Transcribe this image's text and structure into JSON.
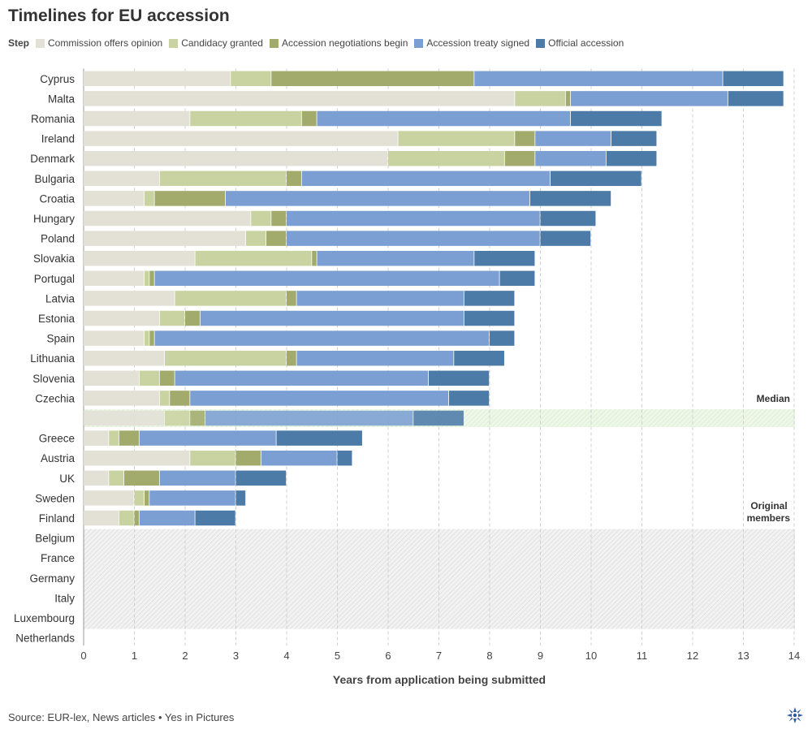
{
  "title": "Timelines for EU accession",
  "source": "Source: EUR-lex, News articles • Yes in Pictures",
  "legend": {
    "title": "Step",
    "items": [
      {
        "label": "Commission offers opinion",
        "color": "#e3e0d6"
      },
      {
        "label": "Candidacy granted",
        "color": "#c9d3a1"
      },
      {
        "label": "Accession negotiations begin",
        "color": "#a2ab6b"
      },
      {
        "label": "Accession treaty signed",
        "color": "#7b9fd2"
      },
      {
        "label": "Official accession",
        "color": "#4c7ba8"
      }
    ]
  },
  "chart_data": {
    "type": "bar",
    "orientation": "horizontal",
    "stacked": true,
    "title": "Timelines for EU accession",
    "xlabel": "Years from application being submitted",
    "ylabel": "",
    "xlim": [
      0,
      14
    ],
    "xticks": [
      0,
      1,
      2,
      3,
      4,
      5,
      6,
      7,
      8,
      9,
      10,
      11,
      12,
      13,
      14
    ],
    "grid": "vertical dashed",
    "categories": [
      "Cyprus",
      "Malta",
      "Romania",
      "Ireland",
      "Denmark",
      "Bulgaria",
      "Croatia",
      "Hungary",
      "Poland",
      "Slovakia",
      "Portugal",
      "Latvia",
      "Estonia",
      "Spain",
      "Lithuania",
      "Slovenia",
      "Czechia",
      "Median",
      "Greece",
      "Austria",
      "UK",
      "Sweden",
      "Finland",
      "Belgium",
      "France",
      "Germany",
      "Italy",
      "Luxembourg",
      "Netherlands"
    ],
    "step_names": [
      "Commission offers opinion",
      "Candidacy granted",
      "Accession negotiations begin",
      "Accession treaty signed",
      "Official accession"
    ],
    "series_note": "cumulative years from application at the end of each step",
    "rows": [
      {
        "name": "Cyprus",
        "show_label": true,
        "ends": [
          2.9,
          3.7,
          7.7,
          12.6,
          13.8
        ]
      },
      {
        "name": "Malta",
        "show_label": true,
        "ends": [
          8.5,
          9.5,
          9.6,
          12.7,
          13.8
        ]
      },
      {
        "name": "Romania",
        "show_label": true,
        "ends": [
          2.1,
          4.3,
          4.6,
          9.6,
          11.4
        ]
      },
      {
        "name": "Ireland",
        "show_label": true,
        "ends": [
          6.2,
          8.5,
          8.9,
          10.4,
          11.3
        ]
      },
      {
        "name": "Denmark",
        "show_label": true,
        "ends": [
          6.0,
          8.3,
          8.9,
          10.3,
          11.3
        ]
      },
      {
        "name": "Bulgaria",
        "show_label": true,
        "ends": [
          1.5,
          4.0,
          4.3,
          9.2,
          11.0
        ]
      },
      {
        "name": "Croatia",
        "show_label": true,
        "ends": [
          1.2,
          1.4,
          2.8,
          8.8,
          10.4
        ]
      },
      {
        "name": "Hungary",
        "show_label": true,
        "ends": [
          3.3,
          3.7,
          4.0,
          9.0,
          10.1
        ]
      },
      {
        "name": "Poland",
        "show_label": true,
        "ends": [
          3.2,
          3.6,
          4.0,
          9.0,
          10.0
        ]
      },
      {
        "name": "Slovakia",
        "show_label": true,
        "ends": [
          2.2,
          4.5,
          4.6,
          7.7,
          8.9
        ]
      },
      {
        "name": "Portugal",
        "show_label": true,
        "ends": [
          1.2,
          1.3,
          1.4,
          8.2,
          8.9
        ]
      },
      {
        "name": "Latvia",
        "show_label": true,
        "ends": [
          1.8,
          4.0,
          4.2,
          7.5,
          8.5
        ]
      },
      {
        "name": "Estonia",
        "show_label": true,
        "ends": [
          1.5,
          2.0,
          2.3,
          7.5,
          8.5
        ]
      },
      {
        "name": "Spain",
        "show_label": true,
        "ends": [
          1.2,
          1.3,
          1.4,
          8.0,
          8.5
        ]
      },
      {
        "name": "Lithuania",
        "show_label": true,
        "ends": [
          1.6,
          4.0,
          4.2,
          7.3,
          8.3
        ]
      },
      {
        "name": "Slovenia",
        "show_label": true,
        "ends": [
          1.1,
          1.5,
          1.8,
          6.8,
          8.0
        ]
      },
      {
        "name": "Czechia",
        "show_label": true,
        "ends": [
          1.5,
          1.7,
          2.1,
          7.2,
          8.0
        ]
      },
      {
        "name": "Median",
        "show_label": false,
        "median": true,
        "ends": [
          1.6,
          2.1,
          2.4,
          6.5,
          7.5
        ]
      },
      {
        "name": "Greece",
        "show_label": true,
        "ends": [
          0.5,
          0.7,
          1.1,
          3.8,
          5.5
        ]
      },
      {
        "name": "Austria",
        "show_label": true,
        "ends": [
          2.1,
          3.0,
          3.5,
          5.0,
          5.3
        ]
      },
      {
        "name": "UK",
        "show_label": true,
        "ends": [
          0.5,
          0.8,
          1.5,
          3.0,
          4.0
        ]
      },
      {
        "name": "Sweden",
        "show_label": true,
        "ends": [
          1.0,
          1.2,
          1.3,
          3.0,
          3.2
        ]
      },
      {
        "name": "Finland",
        "show_label": true,
        "ends": [
          0.7,
          1.0,
          1.1,
          2.2,
          3.0
        ]
      },
      {
        "name": "Belgium",
        "show_label": true,
        "original": true,
        "ends": []
      },
      {
        "name": "France",
        "show_label": true,
        "original": true,
        "ends": []
      },
      {
        "name": "Germany",
        "show_label": true,
        "original": true,
        "ends": []
      },
      {
        "name": "Italy",
        "show_label": true,
        "original": true,
        "ends": []
      },
      {
        "name": "Luxembourg",
        "show_label": true,
        "original": true,
        "ends": []
      },
      {
        "name": "Netherlands",
        "show_label": true,
        "original": true,
        "ends": []
      }
    ],
    "annotations": [
      {
        "text": "Median",
        "row": "Median",
        "position": "right"
      },
      {
        "text": "Original members",
        "lines": [
          "Original",
          "members"
        ],
        "row": "Finland",
        "position": "right"
      }
    ]
  }
}
